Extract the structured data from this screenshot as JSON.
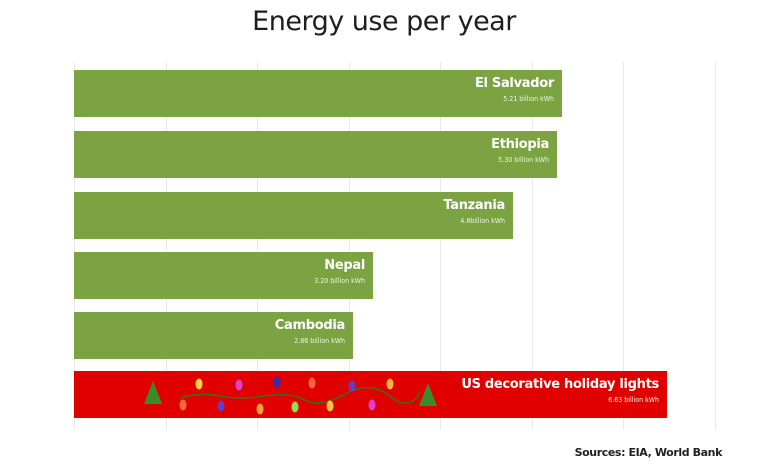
{
  "chart_data": {
    "type": "bar",
    "orientation": "horizontal",
    "title": "Energy use per year",
    "categories": [
      "El Salvador",
      "Ethiopia",
      "Tanzania",
      "Nepal",
      "Cambodia",
      "US decorative holiday lights"
    ],
    "values": [
      5.21,
      5.3,
      4.8,
      3.2,
      2.86,
      6.63
    ],
    "value_labels": [
      "5.21 billion kWh",
      "5.30 billion kWh",
      "4.8billion kWh",
      "3.20 billion kWh",
      "2.86 billion kWh",
      "6.63 billion kWh"
    ],
    "unit": "billion kWh",
    "colors": [
      "#7ba342",
      "#7ba342",
      "#7ba342",
      "#7ba342",
      "#7ba342",
      "#e00000"
    ],
    "xlim": [
      0,
      7
    ],
    "grid": true,
    "xlabel": "",
    "ylabel": ""
  },
  "source": "Sources: EIA, World Bank"
}
